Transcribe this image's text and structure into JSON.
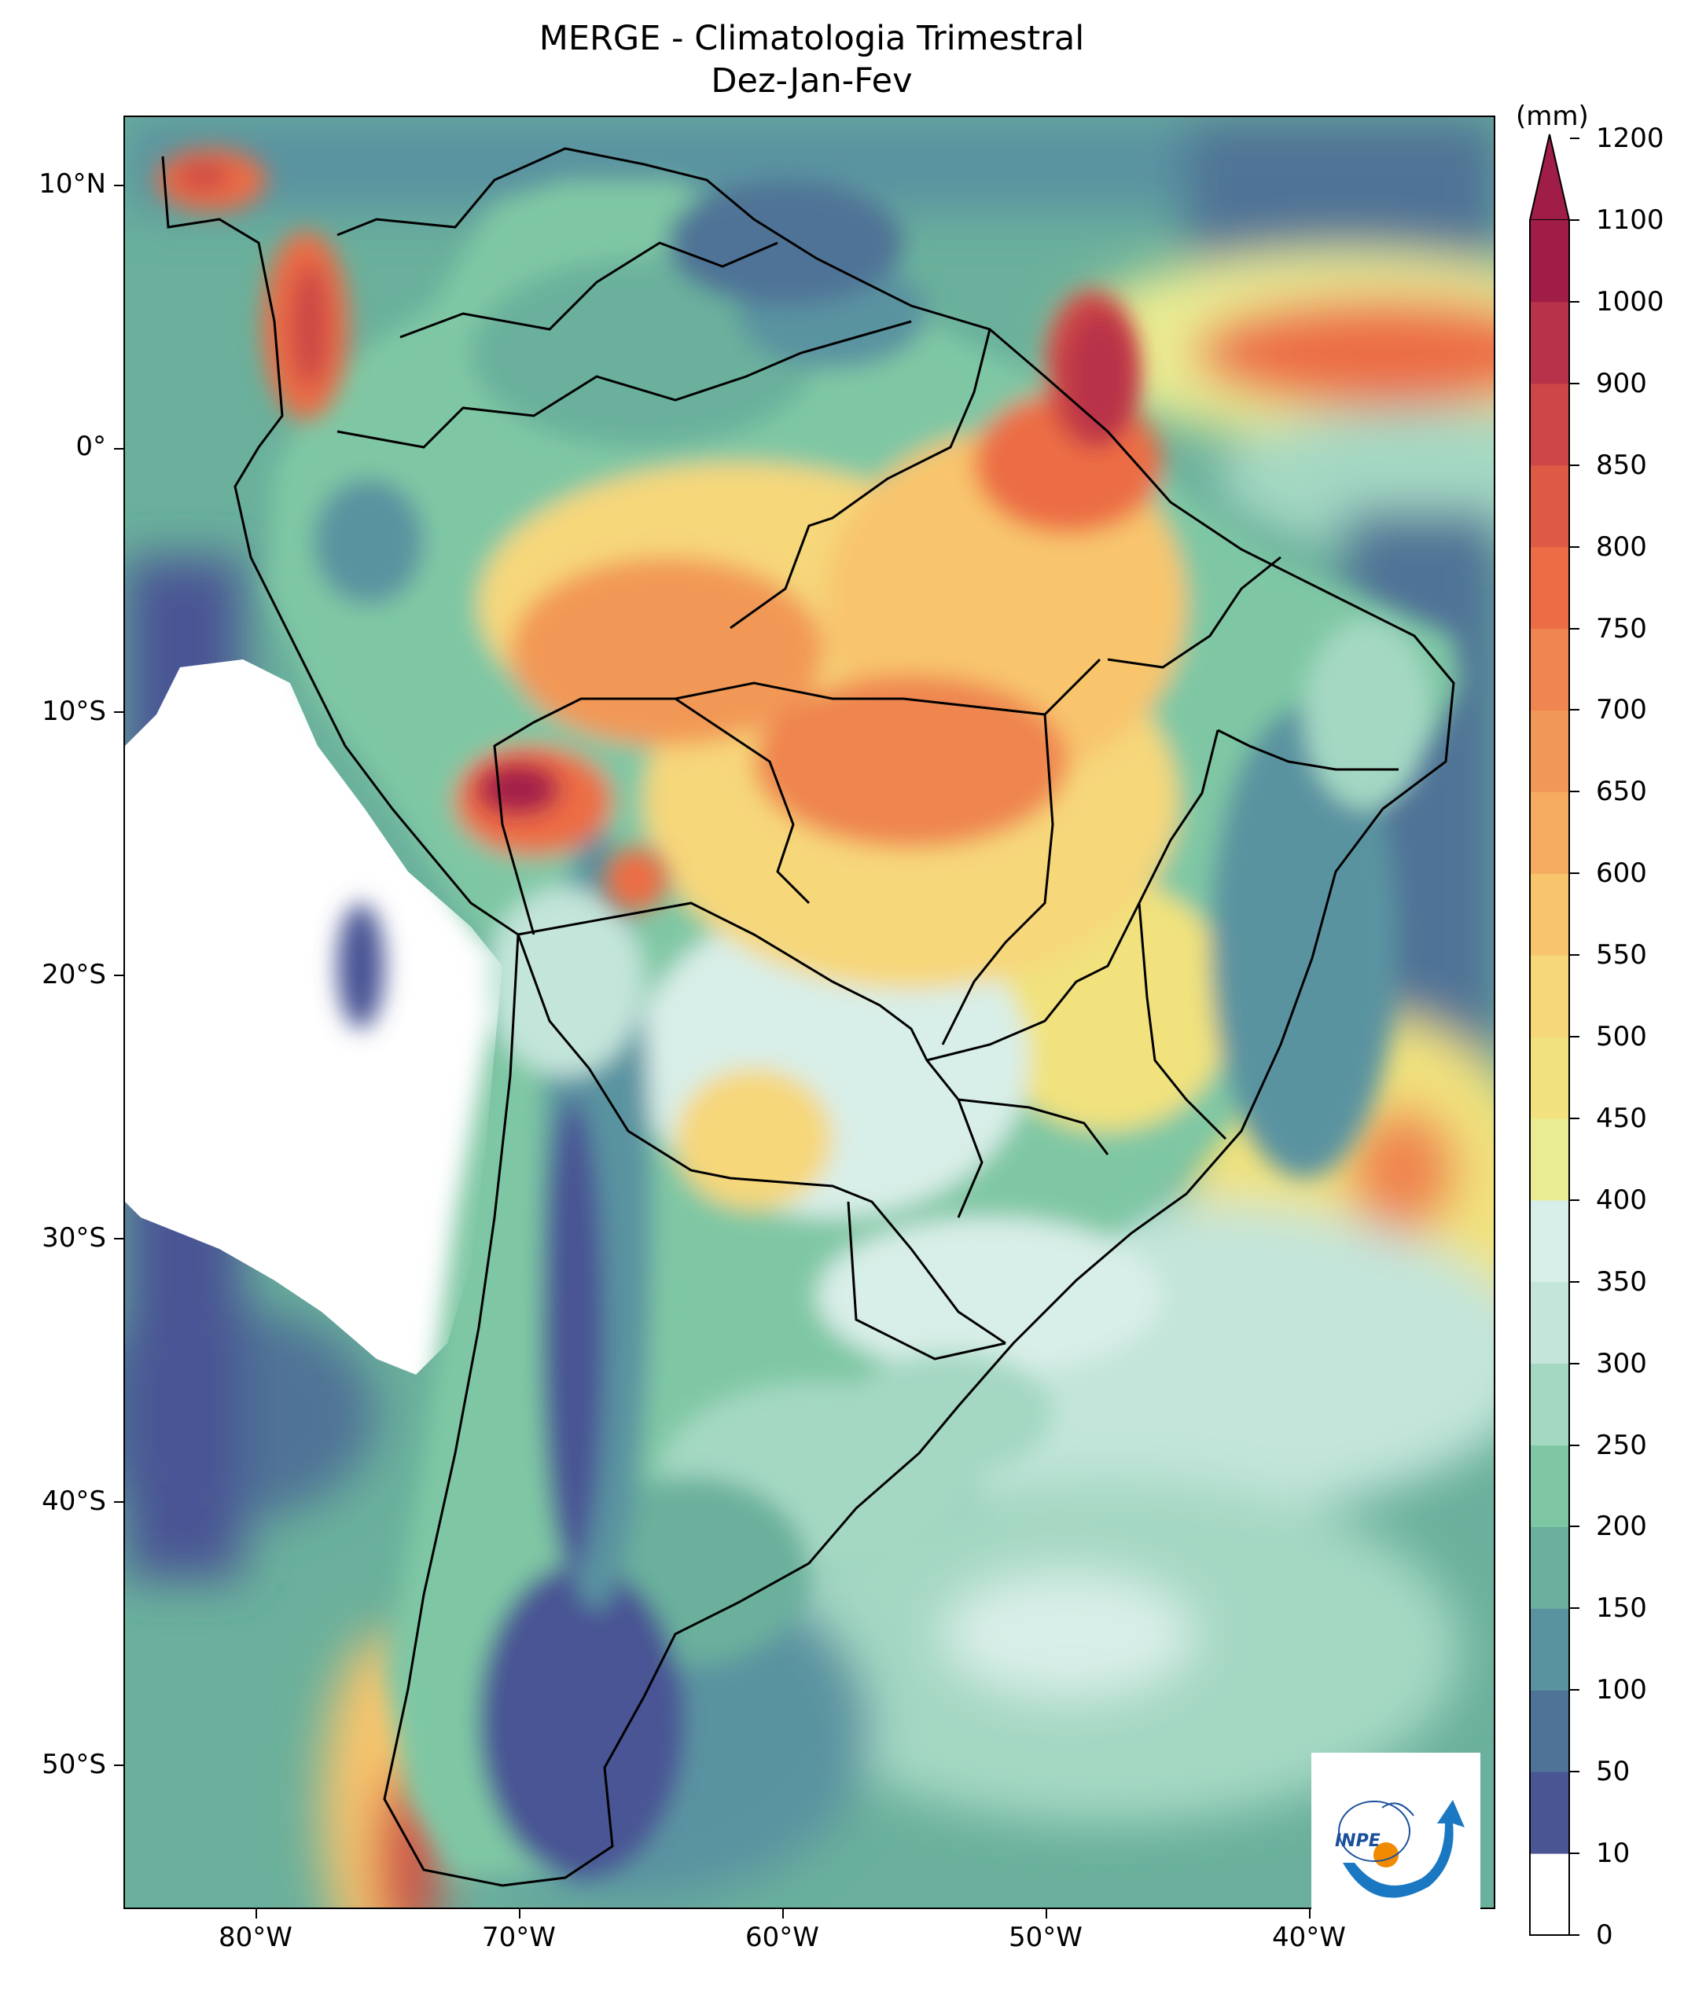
{
  "title": {
    "line1": "MERGE - Climatologia Trimestral",
    "line2": "Dez-Jan-Fev"
  },
  "colorbar": {
    "unit": "(mm)",
    "levels": [
      "0",
      "10",
      "50",
      "100",
      "150",
      "200",
      "250",
      "300",
      "350",
      "400",
      "450",
      "500",
      "550",
      "600",
      "650",
      "700",
      "750",
      "800",
      "850",
      "900",
      "1000",
      "1100",
      "1200"
    ],
    "colors": [
      "#ffffff",
      "#4a5594",
      "#4f7396",
      "#5a93a0",
      "#6ab09c",
      "#7fc7a4",
      "#a4d8c3",
      "#c3e5da",
      "#d8eee8",
      "#e9ec93",
      "#f1e27d",
      "#f6d77a",
      "#f8c56d",
      "#f5ac61",
      "#f29857",
      "#ef8550",
      "#ec6d45",
      "#dd5a45",
      "#cc4745",
      "#b8334a",
      "#a01d48"
    ],
    "extend_color": "#a01d48"
  },
  "axes": {
    "lat_labels": [
      "10°N",
      "0°",
      "10°S",
      "20°S",
      "30°S",
      "40°S",
      "50°S"
    ],
    "lon_labels": [
      "80°W",
      "70°W",
      "60°W",
      "50°W",
      "40°W"
    ]
  },
  "logo": {
    "text": "INPE"
  }
}
